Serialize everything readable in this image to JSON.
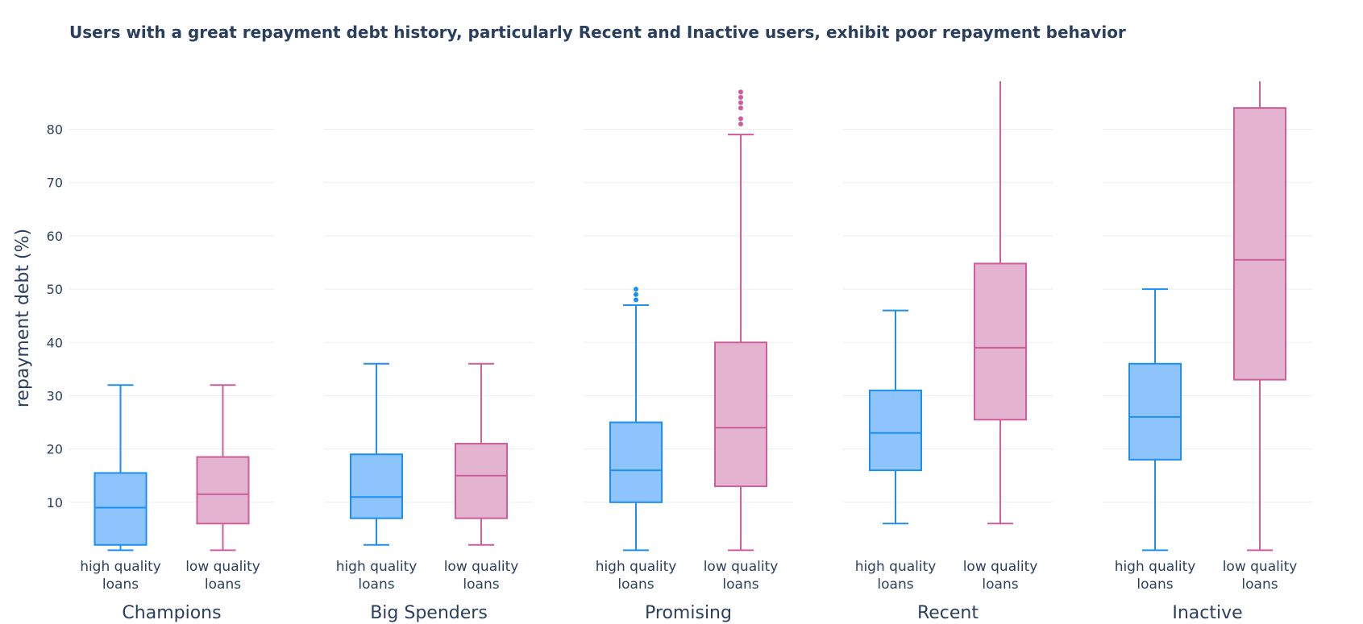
{
  "chart_data": {
    "type": "box",
    "title": "Users with a great repayment debt history, particularly Recent and Inactive users, exhibit poor repayment behavior",
    "ylabel": "repayment debt (%)",
    "ylim": [
      0,
      89
    ],
    "yticks": [
      10,
      20,
      30,
      40,
      50,
      60,
      70,
      80
    ],
    "groups": [
      "Champions",
      "Big Spenders",
      "Promising",
      "Recent",
      "Inactive"
    ],
    "categories": [
      "high quality\nloans",
      "low quality\nloans"
    ],
    "colors": {
      "high_line": "#1e8ef0",
      "high_fill": "#8cc4fb",
      "low_line": "#cc5f9b",
      "low_fill": "#e3b3cf"
    },
    "series": [
      {
        "category": "high quality\nloans",
        "boxes": [
          {
            "lower_fence": 1,
            "q1": 2,
            "median": 9,
            "q3": 15.5,
            "upper_fence": 32,
            "outliers": []
          },
          {
            "lower_fence": 2,
            "q1": 7,
            "median": 11,
            "q3": 19,
            "upper_fence": 36,
            "outliers": []
          },
          {
            "lower_fence": 1,
            "q1": 10,
            "median": 16,
            "q3": 25,
            "upper_fence": 47,
            "outliers": [
              48,
              49,
              50
            ]
          },
          {
            "lower_fence": 6,
            "q1": 16,
            "median": 23,
            "q3": 31,
            "upper_fence": 46,
            "outliers": []
          },
          {
            "lower_fence": 1,
            "q1": 18,
            "median": 26,
            "q3": 36,
            "upper_fence": 50,
            "outliers": []
          }
        ]
      },
      {
        "category": "low quality\nloans",
        "boxes": [
          {
            "lower_fence": 1,
            "q1": 6,
            "median": 11.5,
            "q3": 18.5,
            "upper_fence": 32,
            "outliers": []
          },
          {
            "lower_fence": 2,
            "q1": 7,
            "median": 15,
            "q3": 21,
            "upper_fence": 36,
            "outliers": []
          },
          {
            "lower_fence": 1,
            "q1": 13,
            "median": 24,
            "q3": 40,
            "upper_fence": 79,
            "outliers": [
              81,
              82,
              84,
              85,
              86,
              87
            ]
          },
          {
            "lower_fence": 6,
            "q1": 25.5,
            "median": 39,
            "q3": 54.8,
            "upper_fence": 89,
            "outliers": []
          },
          {
            "lower_fence": 1,
            "q1": 33,
            "median": 55.5,
            "q3": 84,
            "upper_fence": 89,
            "outliers": []
          }
        ]
      }
    ]
  }
}
